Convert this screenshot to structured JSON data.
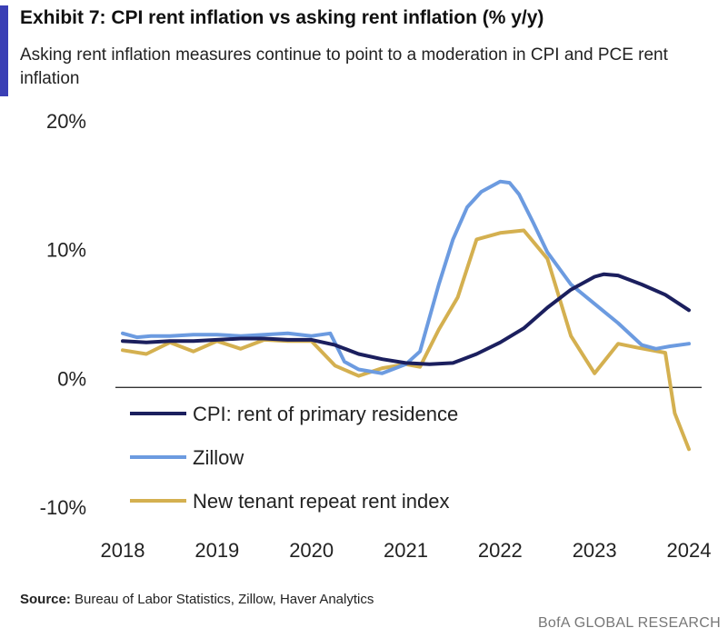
{
  "header": {
    "title": "Exhibit 7: CPI rent inflation vs asking rent inflation (% y/y)",
    "subtitle": "Asking rent inflation measures continue to point to a moderation in CPI and PCE rent inflation"
  },
  "footer": {
    "source_label": "Source:",
    "source_text": " Bureau of Labor Statistics, Zillow, Haver Analytics",
    "brand": "BofA GLOBAL RESEARCH"
  },
  "chart_data": {
    "type": "line",
    "title": "CPI rent inflation vs asking rent inflation (% y/y)",
    "xlabel": "",
    "ylabel": "",
    "xlim": [
      2018.0,
      2024.0
    ],
    "ylim": [
      -10,
      20
    ],
    "yticks": [
      20,
      10,
      0,
      -10
    ],
    "ytick_labels": [
      "20%",
      "10%",
      "0%",
      "-10%"
    ],
    "xticks": [
      2018,
      2019,
      2020,
      2021,
      2022,
      2023,
      2024
    ],
    "xtick_labels": [
      "2018",
      "2019",
      "2020",
      "2021",
      "2022",
      "2023",
      "2024"
    ],
    "legend_position": "bottom-left",
    "series": [
      {
        "name": "CPI: rent of primary residence",
        "color": "#1b1f5e",
        "x": [
          2018.0,
          2018.25,
          2018.5,
          2018.75,
          2019.0,
          2019.25,
          2019.5,
          2019.75,
          2020.0,
          2020.25,
          2020.5,
          2020.75,
          2021.0,
          2021.25,
          2021.5,
          2021.75,
          2022.0,
          2022.25,
          2022.5,
          2022.75,
          2023.0,
          2023.1,
          2023.25,
          2023.5,
          2023.75,
          2024.0
        ],
        "y": [
          3.6,
          3.5,
          3.6,
          3.6,
          3.7,
          3.8,
          3.8,
          3.7,
          3.7,
          3.3,
          2.6,
          2.2,
          1.9,
          1.8,
          1.9,
          2.6,
          3.5,
          4.6,
          6.2,
          7.6,
          8.6,
          8.8,
          8.7,
          8.0,
          7.2,
          6.0
        ]
      },
      {
        "name": "Zillow",
        "color": "#6c9be0",
        "x": [
          2018.0,
          2018.15,
          2018.3,
          2018.5,
          2018.75,
          2019.0,
          2019.25,
          2019.5,
          2019.75,
          2020.0,
          2020.2,
          2020.35,
          2020.5,
          2020.75,
          2021.0,
          2021.15,
          2021.35,
          2021.5,
          2021.65,
          2021.8,
          2022.0,
          2022.1,
          2022.2,
          2022.35,
          2022.5,
          2022.75,
          2023.0,
          2023.25,
          2023.5,
          2023.65,
          2023.8,
          2024.0
        ],
        "y": [
          4.2,
          3.9,
          4.0,
          4.0,
          4.1,
          4.1,
          4.0,
          4.1,
          4.2,
          4.0,
          4.2,
          2.0,
          1.4,
          1.1,
          1.8,
          2.8,
          8.0,
          11.5,
          14.0,
          15.2,
          16.0,
          15.9,
          15.0,
          12.8,
          10.5,
          8.0,
          6.5,
          5.0,
          3.3,
          3.0,
          3.2,
          3.4
        ]
      },
      {
        "name": "New tenant repeat rent index",
        "color": "#d4b050",
        "x": [
          2018.0,
          2018.25,
          2018.5,
          2018.75,
          2019.0,
          2019.25,
          2019.5,
          2019.75,
          2020.0,
          2020.25,
          2020.5,
          2020.75,
          2021.0,
          2021.15,
          2021.35,
          2021.55,
          2021.75,
          2022.0,
          2022.25,
          2022.5,
          2022.75,
          2023.0,
          2023.25,
          2023.45,
          2023.75,
          2023.85,
          2024.0
        ],
        "y": [
          2.9,
          2.6,
          3.5,
          2.8,
          3.6,
          3.0,
          3.7,
          3.6,
          3.6,
          1.7,
          0.9,
          1.5,
          1.8,
          1.6,
          4.5,
          7.0,
          11.5,
          12.0,
          12.2,
          10.0,
          4.0,
          1.1,
          3.4,
          3.1,
          2.7,
          -2.0,
          -4.8
        ]
      }
    ]
  }
}
